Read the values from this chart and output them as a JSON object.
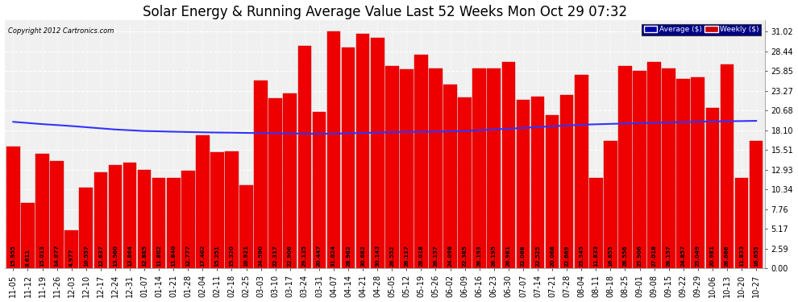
{
  "title": "Solar Energy & Running Average Value Last 52 Weeks Mon Oct 29 07:32",
  "copyright": "Copyright 2012 Cartronics.com",
  "categories": [
    "11-05",
    "11-12",
    "11-19",
    "11-26",
    "12-03",
    "12-10",
    "12-17",
    "12-24",
    "12-31",
    "01-07",
    "01-14",
    "01-21",
    "01-28",
    "02-04",
    "02-11",
    "02-18",
    "02-25",
    "03-03",
    "03-10",
    "03-17",
    "03-24",
    "03-31",
    "04-07",
    "04-14",
    "04-21",
    "04-28",
    "05-05",
    "05-12",
    "05-19",
    "05-26",
    "06-02",
    "06-09",
    "06-16",
    "06-23",
    "06-30",
    "07-07",
    "07-14",
    "07-21",
    "07-28",
    "08-04",
    "08-11",
    "08-18",
    "08-25",
    "09-01",
    "09-08",
    "09-15",
    "09-22",
    "09-29",
    "10-06",
    "10-13",
    "10-20",
    "10-27"
  ],
  "weekly_values": [
    15.955,
    8.611,
    15.013,
    14.077,
    4.977,
    10.557,
    12.637,
    13.56,
    13.864,
    12.885,
    11.802,
    11.84,
    12.777,
    17.402,
    15.251,
    15.32,
    10.921,
    24.59,
    22.317,
    22.906,
    29.135,
    20.447,
    31.024,
    28.962,
    30.682,
    30.143,
    26.552,
    26.117,
    28.018,
    26.157,
    24.098,
    22.385,
    26.193,
    26.195,
    26.981,
    22.068,
    22.525,
    20.068,
    22.669,
    25.345,
    11.833,
    16.655,
    26.556,
    25.906,
    27.018,
    26.157,
    24.857,
    25.049,
    20.981,
    26.666,
    11.833,
    16.655
  ],
  "running_avg": [
    19.2,
    19.05,
    18.9,
    18.78,
    18.65,
    18.5,
    18.35,
    18.2,
    18.1,
    18.0,
    17.96,
    17.91,
    17.87,
    17.83,
    17.8,
    17.78,
    17.75,
    17.73,
    17.7,
    17.68,
    17.65,
    17.63,
    17.65,
    17.7,
    17.75,
    17.8,
    17.85,
    17.88,
    17.9,
    17.92,
    17.95,
    18.0,
    18.1,
    18.2,
    18.3,
    18.4,
    18.52,
    18.62,
    18.72,
    18.82,
    18.88,
    18.93,
    18.98,
    19.03,
    19.08,
    19.12,
    19.17,
    19.22,
    19.25,
    19.28,
    19.3,
    19.33
  ],
  "bar_color": "#ee0000",
  "avg_line_color": "#3333ff",
  "background_color": "#ffffff",
  "plot_bg_color": "#f0f0f0",
  "grid_color": "#ffffff",
  "yticks": [
    0.0,
    2.59,
    5.17,
    7.76,
    10.34,
    12.93,
    15.51,
    18.1,
    20.68,
    23.27,
    25.85,
    28.44,
    31.02
  ],
  "legend_avg_bg": "#0000aa",
  "legend_weekly_bg": "#cc0000",
  "title_fontsize": 12,
  "axis_fontsize": 7,
  "value_fontsize": 5,
  "ylabel_fontsize": 7
}
